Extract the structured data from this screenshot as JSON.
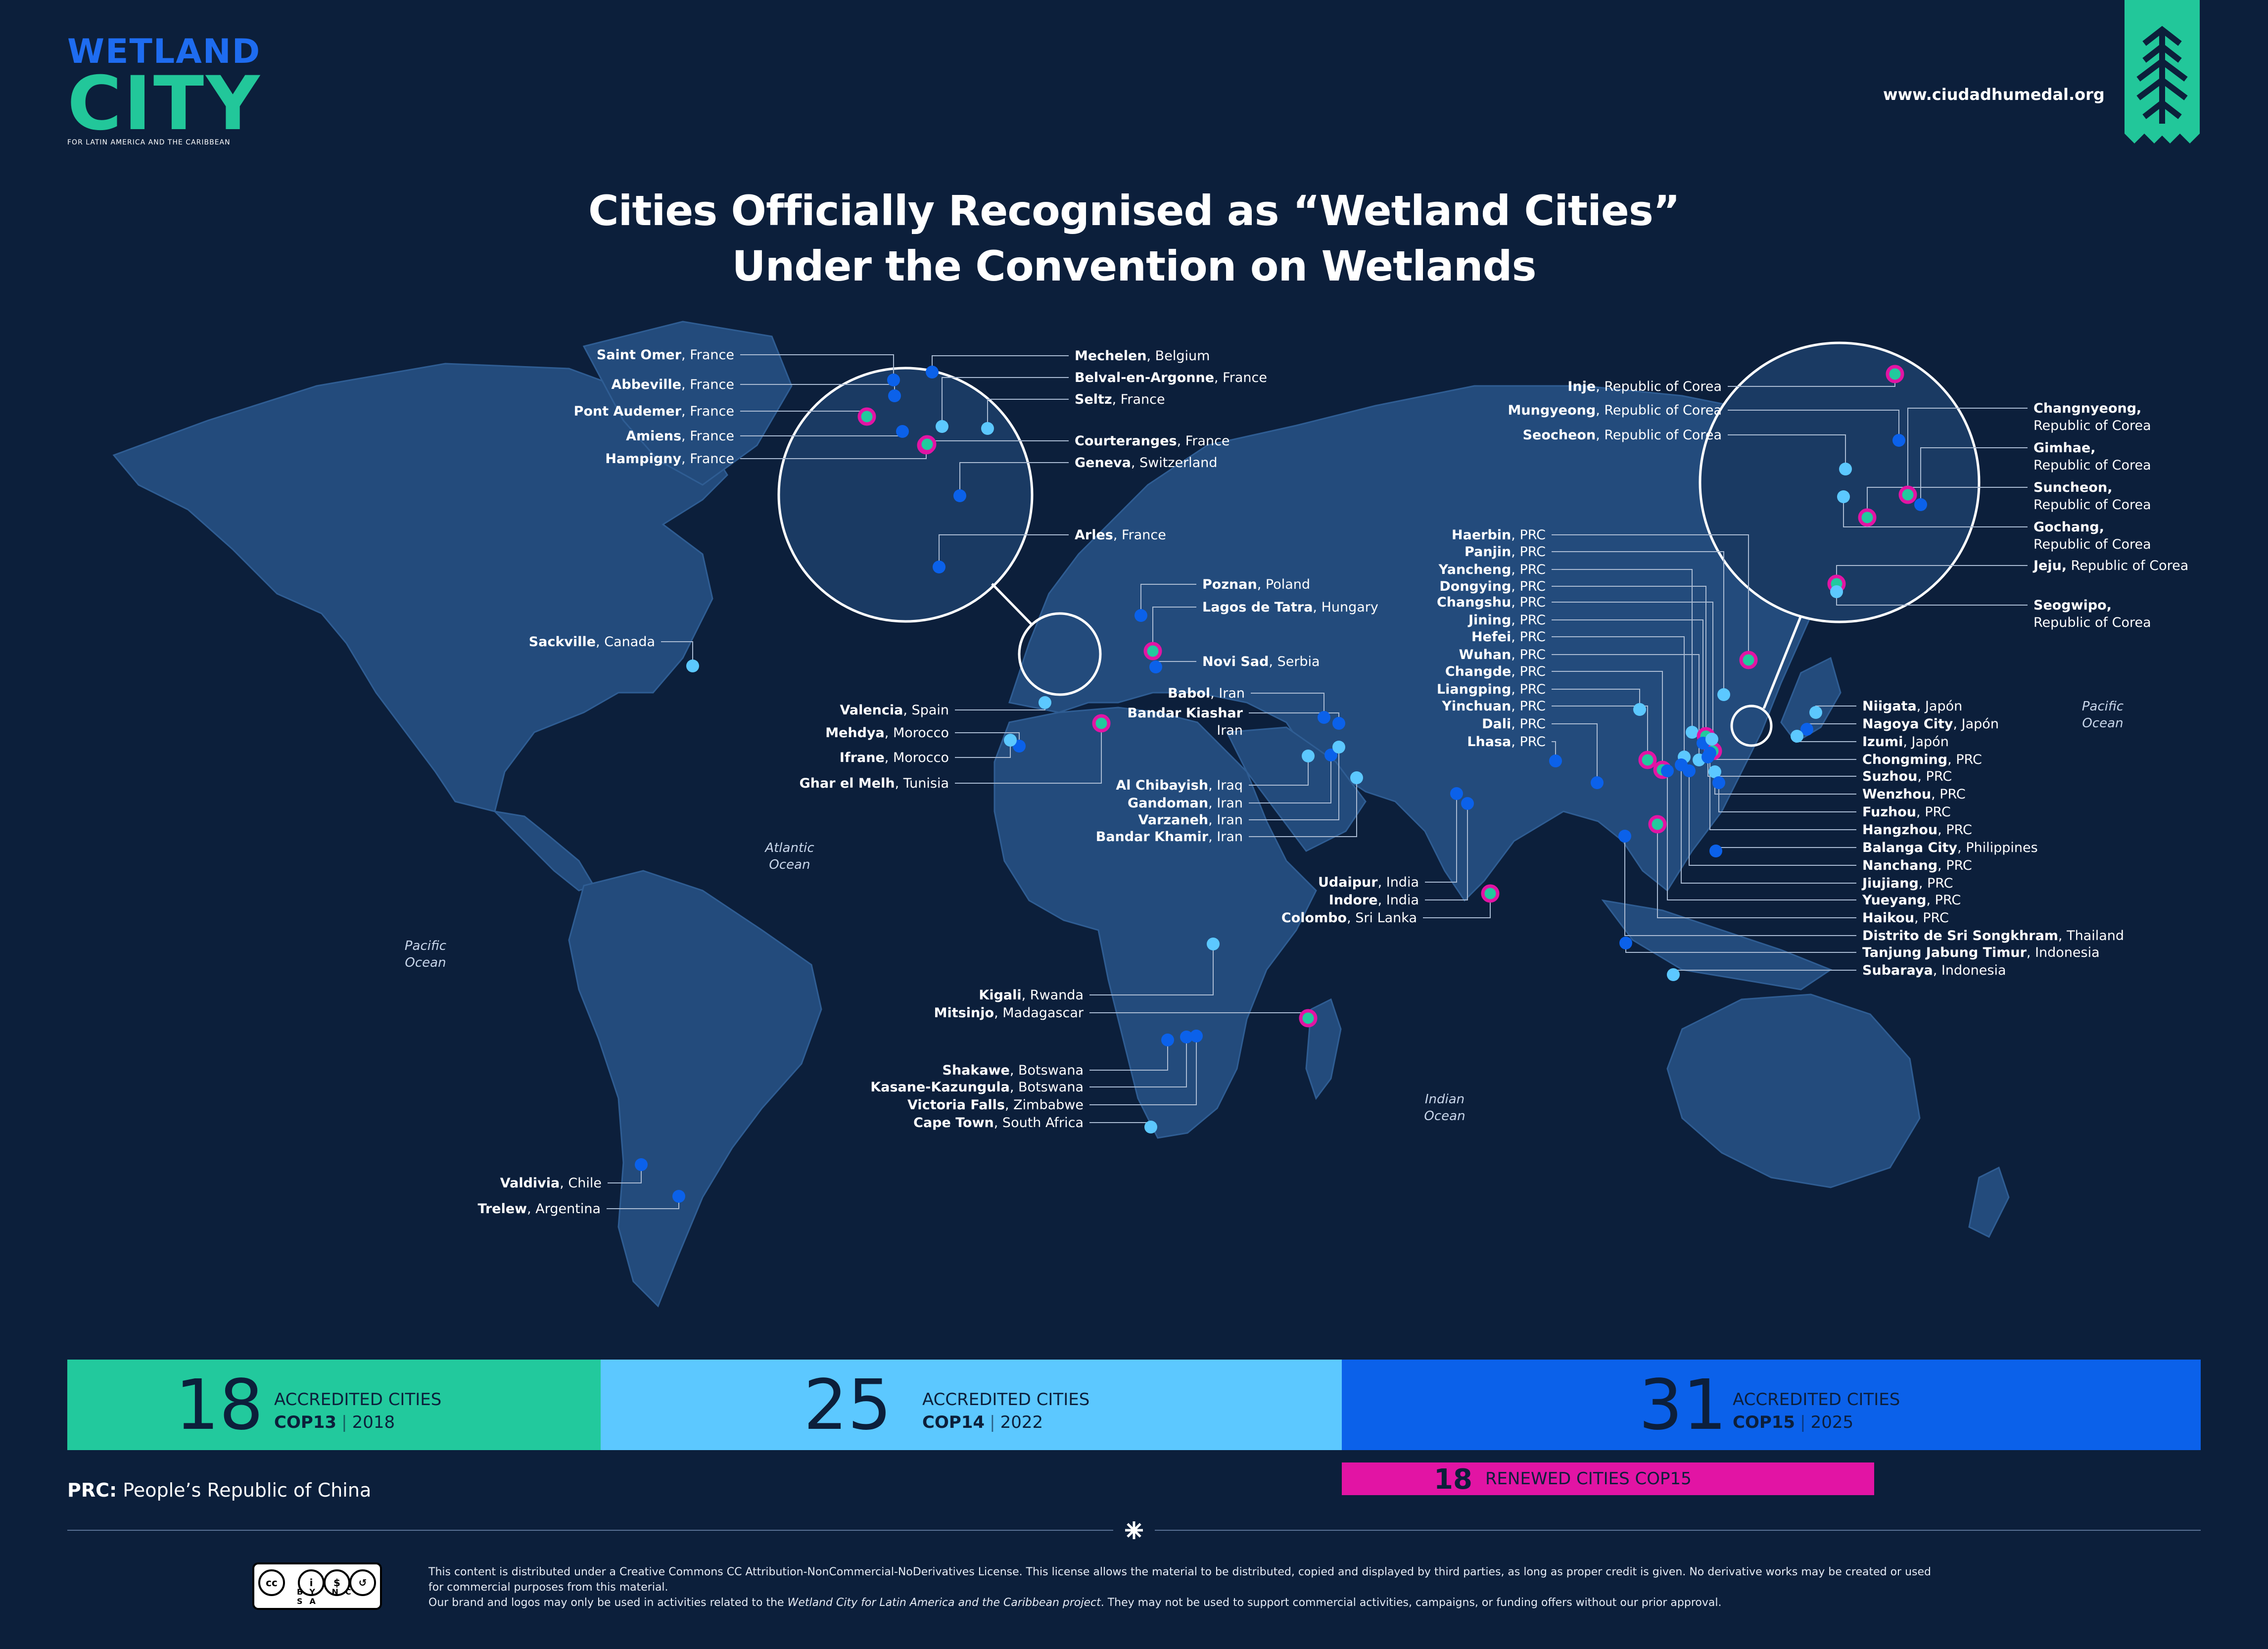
{
  "brand": {
    "line1": "WETLAND",
    "line2": "CITY",
    "tagline": "FOR LATIN AMERICA AND THE CARIBBEAN"
  },
  "website": "www.ciudadhumedal.org",
  "title": {
    "line1": "Cities Officially Recognised as “Wetland Cities”",
    "line2": "Under the Convention on Wetlands"
  },
  "colors": {
    "background": "#0c1f3b",
    "land": "#234b7c",
    "cop13": "#22c99d",
    "cop14": "#5cc8ff",
    "cop15": "#0b61ea",
    "renewed": "#e214a4"
  },
  "oceans": [
    {
      "name": "Atlantic",
      "suffix": "Ocean"
    },
    {
      "name": "Pacific",
      "suffix": "Ocean"
    },
    {
      "name": "Pacific",
      "suffix": "Ocean"
    },
    {
      "name": "Indian",
      "suffix": "Ocean"
    }
  ],
  "stats": [
    {
      "number": "18",
      "label": "ACCREDITED CITIES",
      "cop": "COP13",
      "year": "2018"
    },
    {
      "number": "25",
      "label": "ACCREDITED CITIES",
      "cop": "COP14",
      "year": "2022"
    },
    {
      "number": "31",
      "label": "ACCREDITED CITIES",
      "cop": "COP15",
      "year": "2025"
    }
  ],
  "renewed": {
    "number": "18",
    "label": "RENEWED CITIES COP15"
  },
  "prc_note": {
    "key": "PRC:",
    "text": "People’s Republic of China"
  },
  "footer": {
    "line1": "This content is distributed under a Creative Commons CC Attribution-NonCommercial-NoDerivatives License. This license allows the material to be distributed, copied and displayed by third parties, as long as proper credit is given. No derivative works may be created or used",
    "line2": "for commercial purposes from this material.",
    "line3a": "Our brand and logos may only be used in activities related to the ",
    "line3b": "Wetland City for Latin America and the Caribbean project",
    "line3c": ". They may not be used to support commercial activities, campaigns, or funding offers without our prior approval.",
    "license": "BY NC SA"
  },
  "cities": [
    {
      "name": "Saint Omer",
      "country": "France",
      "cop": "cop15"
    },
    {
      "name": "Abbeville",
      "country": "France",
      "cop": "cop15"
    },
    {
      "name": "Pont Audemer",
      "country": "France",
      "cop": "cop13"
    },
    {
      "name": "Amiens",
      "country": "France",
      "cop": "cop15"
    },
    {
      "name": "Hampigny",
      "country": "France",
      "cop": "cop13"
    },
    {
      "name": "Mechelen",
      "country": "Belgium",
      "cop": "cop15"
    },
    {
      "name": "Belval-en-Argonne",
      "country": "France",
      "cop": "cop14"
    },
    {
      "name": "Seltz",
      "country": "France",
      "cop": "cop14"
    },
    {
      "name": "Courteranges",
      "country": "France",
      "cop": "cop13"
    },
    {
      "name": "Geneva",
      "country": "Switzerland",
      "cop": "cop15"
    },
    {
      "name": "Arles",
      "country": "France",
      "cop": "cop15"
    },
    {
      "name": "Poznan",
      "country": "Poland",
      "cop": "cop15"
    },
    {
      "name": "Lagos de Tatra",
      "country": "Hungary",
      "cop": "cop13"
    },
    {
      "name": "Novi Sad",
      "country": "Serbia",
      "cop": "cop15"
    },
    {
      "name": "Sackville",
      "country": "Canada",
      "cop": "cop14"
    },
    {
      "name": "Valencia",
      "country": "Spain",
      "cop": "cop14"
    },
    {
      "name": "Mehdya",
      "country": "Morocco",
      "cop": "cop15"
    },
    {
      "name": "Ifrane",
      "country": "Morocco",
      "cop": "cop14"
    },
    {
      "name": "Ghar el Melh",
      "country": "Tunisia",
      "cop": "cop13"
    },
    {
      "name": "Babol",
      "country": "Iran",
      "cop": "cop15"
    },
    {
      "name": "Bandar Kiashar",
      "country": "Iran",
      "cop": "cop15"
    },
    {
      "name": "Al Chibayish",
      "country": "Iraq",
      "cop": "cop14"
    },
    {
      "name": "Gandoman",
      "country": "Iran",
      "cop": "cop15"
    },
    {
      "name": "Varzaneh",
      "country": "Iran",
      "cop": "cop14"
    },
    {
      "name": "Bandar Khamir",
      "country": "Iran",
      "cop": "cop14"
    },
    {
      "name": "Udaipur",
      "country": "India",
      "cop": "cop15"
    },
    {
      "name": "Indore",
      "country": "India",
      "cop": "cop15"
    },
    {
      "name": "Colombo",
      "country": "Sri Lanka",
      "cop": "cop13"
    },
    {
      "name": "Kigali",
      "country": "Rwanda",
      "cop": "cop14"
    },
    {
      "name": "Mitsinjo",
      "country": "Madagascar",
      "cop": "cop13"
    },
    {
      "name": "Shakawe",
      "country": "Botswana",
      "cop": "cop15"
    },
    {
      "name": "Kasane-Kazungula",
      "country": "Botswana",
      "cop": "cop15"
    },
    {
      "name": "Victoria Falls",
      "country": "Zimbabwe",
      "cop": "cop15"
    },
    {
      "name": "Cape Town",
      "country": "South Africa",
      "cop": "cop14"
    },
    {
      "name": "Valdivia",
      "country": "Chile",
      "cop": "cop15"
    },
    {
      "name": "Trelew",
      "country": "Argentina",
      "cop": "cop15"
    },
    {
      "name": "Inje",
      "country": "Republic of Corea",
      "cop": "cop13"
    },
    {
      "name": "Mungyeong",
      "country": "Republic of Corea",
      "cop": "cop15"
    },
    {
      "name": "Seocheon",
      "country": "Republic of Corea",
      "cop": "cop14"
    },
    {
      "name": "Changnyeong,",
      "country": "Republic of Corea",
      "cop": "cop13"
    },
    {
      "name": "Gimhae,",
      "country": "Republic of Corea",
      "cop": "cop15"
    },
    {
      "name": "Suncheon,",
      "country": "Republic of Corea",
      "cop": "cop13"
    },
    {
      "name": "Gochang,",
      "country": "Republic of Corea",
      "cop": "cop14"
    },
    {
      "name": "Jeju,",
      "country": "Republic of Corea",
      "cop": "cop13"
    },
    {
      "name": "Seogwipo,",
      "country": "Republic of Corea",
      "cop": "cop14"
    },
    {
      "name": "Haerbin",
      "country": "PRC",
      "cop": "cop13"
    },
    {
      "name": "Panjin",
      "country": "PRC",
      "cop": "cop14"
    },
    {
      "name": "Yancheng",
      "country": "PRC",
      "cop": "cop14"
    },
    {
      "name": "Dongying",
      "country": "PRC",
      "cop": "cop13"
    },
    {
      "name": "Changshu",
      "country": "PRC",
      "cop": "cop13"
    },
    {
      "name": "Jining",
      "country": "PRC",
      "cop": "cop15"
    },
    {
      "name": "Hefei",
      "country": "PRC",
      "cop": "cop14"
    },
    {
      "name": "Wuhan",
      "country": "PRC",
      "cop": "cop14"
    },
    {
      "name": "Changde",
      "country": "PRC",
      "cop": "cop13"
    },
    {
      "name": "Liangping",
      "country": "PRC",
      "cop": "cop14"
    },
    {
      "name": "Yinchuan",
      "country": "PRC",
      "cop": "cop13"
    },
    {
      "name": "Dali",
      "country": "PRC",
      "cop": "cop15"
    },
    {
      "name": "Lhasa",
      "country": "PRC",
      "cop": "cop15"
    },
    {
      "name": "Niigata",
      "country": "Japón",
      "cop": "cop14"
    },
    {
      "name": "Nagoya City",
      "country": "Japón",
      "cop": "cop15"
    },
    {
      "name": "Izumi",
      "country": "Japón",
      "cop": "cop14"
    },
    {
      "name": "Chongming",
      "country": "PRC",
      "cop": "cop14"
    },
    {
      "name": "Suzhou",
      "country": "PRC",
      "cop": "cop15"
    },
    {
      "name": "Wenzhou",
      "country": "PRC",
      "cop": "cop14"
    },
    {
      "name": "Fuzhou",
      "country": "PRC",
      "cop": "cop15"
    },
    {
      "name": "Hangzhou",
      "country": "PRC",
      "cop": "cop15"
    },
    {
      "name": "Balanga City",
      "country": "Philippines",
      "cop": "cop15"
    },
    {
      "name": "Nanchang",
      "country": "PRC",
      "cop": "cop15"
    },
    {
      "name": "Jiujiang",
      "country": "PRC",
      "cop": "cop15"
    },
    {
      "name": "Yueyang",
      "country": "PRC",
      "cop": "cop15"
    },
    {
      "name": "Haikou",
      "country": "PRC",
      "cop": "cop13"
    },
    {
      "name": "Distrito de Sri Songkhram",
      "country": "Thailand",
      "cop": "cop15"
    },
    {
      "name": "Tanjung Jabung Timur",
      "country": "Indonesia",
      "cop": "cop15"
    },
    {
      "name": "Subaraya",
      "country": "Indonesia",
      "cop": "cop14"
    }
  ]
}
